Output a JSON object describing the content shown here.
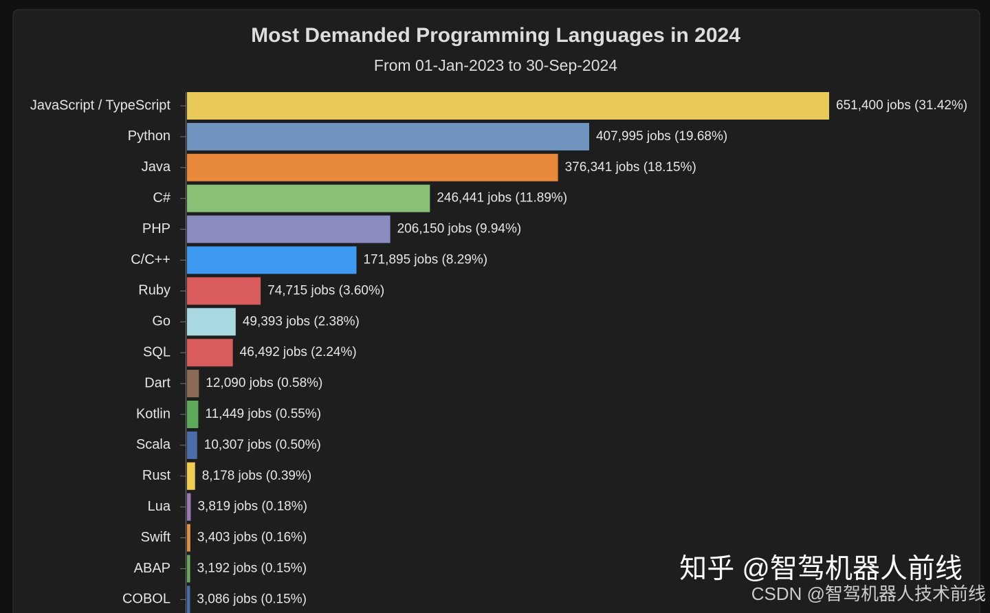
{
  "chart_data": {
    "type": "hbar",
    "title": "Most Demanded Programming Languages in 2024",
    "subtitle": "From 01-Jan-2023 to 30-Sep-2024",
    "categories": [
      "JavaScript / TypeScript",
      "Python",
      "Java",
      "C#",
      "PHP",
      "C/C++",
      "Ruby",
      "Go",
      "SQL",
      "Dart",
      "Kotlin",
      "Scala",
      "Rust",
      "Lua",
      "Swift",
      "ABAP",
      "COBOL"
    ],
    "values": [
      651400,
      407995,
      376341,
      246441,
      206150,
      171895,
      74715,
      49393,
      46492,
      12090,
      11449,
      10307,
      8178,
      3819,
      3403,
      3192,
      3086
    ],
    "value_labels": [
      "651,400 jobs (31.42%)",
      "407,995 jobs (19.68%)",
      "376,341 jobs (18.15%)",
      "246,441 jobs (11.89%)",
      "206,150 jobs (9.94%)",
      "171,895 jobs (8.29%)",
      "74,715 jobs (3.60%)",
      "49,393 jobs (2.38%)",
      "46,492 jobs (2.24%)",
      "12,090 jobs (0.58%)",
      "11,449 jobs (0.55%)",
      "10,307 jobs (0.50%)",
      "8,178 jobs (0.39%)",
      "3,819 jobs (0.18%)",
      "3,403 jobs (0.16%)",
      "3,192 jobs (0.15%)",
      "3,086 jobs (0.15%)"
    ],
    "colors": [
      "#e8c95a",
      "#7094c0",
      "#e8883a",
      "#88c078",
      "#8a8cc0",
      "#3d9af0",
      "#d95c5c",
      "#a8d8e0",
      "#d95c5c",
      "#8c6a58",
      "#5ea85a",
      "#4a6ea8",
      "#f0cc50",
      "#9a7ab0",
      "#e09040",
      "#6aa860",
      "#4a6ea8"
    ],
    "annotations": [
      "知乎 @智驾机器人前线",
      "CSDN @智驾机器人技术前线"
    ]
  }
}
